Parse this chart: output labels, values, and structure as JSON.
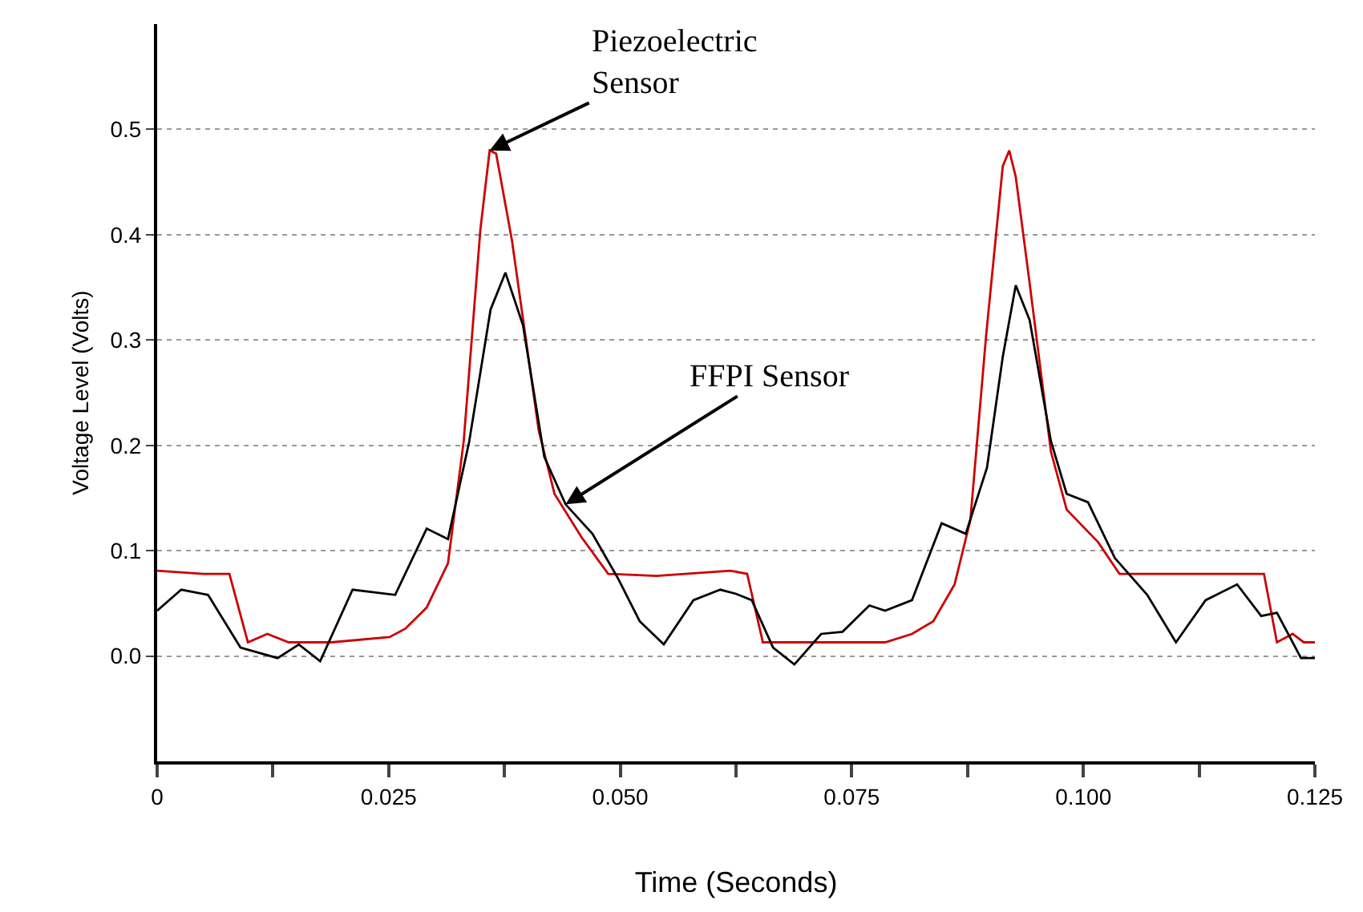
{
  "chart_data": {
    "type": "line",
    "xlabel": "Time (Seconds)",
    "ylabel": "Voltage Level (Volts)",
    "xlim": [
      0,
      0.125
    ],
    "ylim": [
      -0.1,
      0.6
    ],
    "xticks": [
      0,
      {
        "value": 0.0125,
        "label": null
      },
      0.025,
      {
        "value": 0.0375,
        "label": null
      },
      {
        "value": 0.05,
        "label": "0.050"
      },
      {
        "value": 0.0625,
        "label": null
      },
      0.075,
      {
        "value": 0.0875,
        "label": null
      },
      {
        "value": 0.1,
        "label": "0.100"
      },
      {
        "value": 0.1125,
        "label": null
      },
      0.125
    ],
    "yticks": [
      {
        "value": 0,
        "label": "0.0"
      },
      0.1,
      0.2,
      0.3,
      0.4,
      0.5
    ],
    "grid": "y",
    "legend": false,
    "line_style": "solid",
    "series": [
      {
        "color": "#cc0000",
        "x": [
          0,
          0.005,
          0.0078,
          0.0098,
          0.0119,
          0.0142,
          0.0188,
          0.0251,
          0.0268,
          0.0291,
          0.0314,
          0.0331,
          0.0349,
          0.0359,
          0.0366,
          0.0383,
          0.0412,
          0.0429,
          0.0458,
          0.0487,
          0.0539,
          0.0619,
          0.0637,
          0.0654,
          0.0682,
          0.0786,
          0.0815,
          0.0838,
          0.0861,
          0.0878,
          0.0895,
          0.0913,
          0.092,
          0.0927,
          0.0942,
          0.0965,
          0.0982,
          0.1016,
          0.1039,
          0.1126,
          0.1195,
          0.1209,
          0.1226,
          0.1238,
          0.125
        ],
        "values": [
          0.081,
          0.078,
          0.078,
          0.013,
          0.021,
          0.013,
          0.013,
          0.018,
          0.026,
          0.046,
          0.088,
          0.204,
          0.405,
          0.48,
          0.477,
          0.395,
          0.214,
          0.154,
          0.113,
          0.078,
          0.076,
          0.081,
          0.078,
          0.013,
          0.013,
          0.013,
          0.021,
          0.033,
          0.068,
          0.129,
          0.304,
          0.465,
          0.48,
          0.455,
          0.354,
          0.194,
          0.139,
          0.108,
          0.078,
          0.078,
          0.078,
          0.013,
          0.021,
          0.013,
          0.013
        ]
      },
      {
        "color": "#000000",
        "x": [
          0,
          0.0026,
          0.0055,
          0.009,
          0.013,
          0.0153,
          0.0176,
          0.0211,
          0.0257,
          0.0291,
          0.0314,
          0.0337,
          0.036,
          0.0376,
          0.0395,
          0.0418,
          0.0441,
          0.047,
          0.0498,
          0.0521,
          0.0547,
          0.0579,
          0.0608,
          0.0625,
          0.0642,
          0.0665,
          0.0688,
          0.0717,
          0.074,
          0.0769,
          0.0786,
          0.0815,
          0.0847,
          0.0873,
          0.0896,
          0.0913,
          0.0927,
          0.0942,
          0.0965,
          0.0982,
          0.1005,
          0.1034,
          0.1069,
          0.11,
          0.1132,
          0.1166,
          0.1192,
          0.1209,
          0.1235,
          0.125
        ],
        "values": [
          0.043,
          0.063,
          0.058,
          0.008,
          -0.002,
          0.011,
          -0.005,
          0.063,
          0.058,
          0.121,
          0.111,
          0.204,
          0.329,
          0.364,
          0.314,
          0.189,
          0.144,
          0.116,
          0.073,
          0.033,
          0.011,
          0.053,
          0.063,
          0.059,
          0.053,
          0.008,
          -0.008,
          0.021,
          0.023,
          0.048,
          0.043,
          0.053,
          0.126,
          0.116,
          0.179,
          0.284,
          0.352,
          0.319,
          0.204,
          0.154,
          0.146,
          0.093,
          0.058,
          0.013,
          0.053,
          0.068,
          0.038,
          0.041,
          -0.002,
          -0.002
        ]
      }
    ],
    "annotations": [
      {
        "text": "Piezoelectric\nSensor",
        "x": 0.0359,
        "y": 0.48
      },
      {
        "text": "FFPI Sensor",
        "x": 0.0441,
        "y": 0.144
      }
    ]
  }
}
